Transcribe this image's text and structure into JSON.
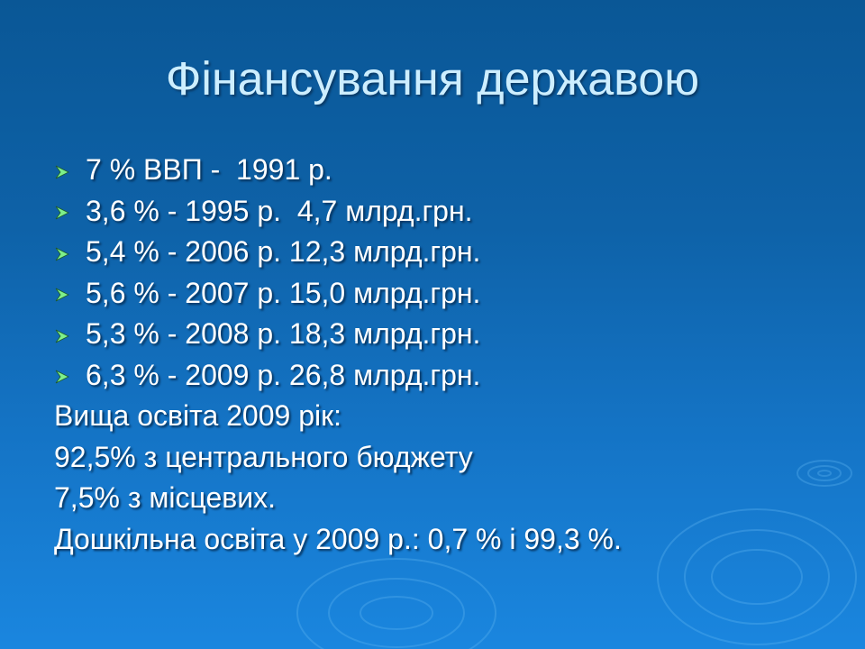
{
  "slide": {
    "title": "Фінансування державою",
    "bullets": [
      "7 % ВВП -  1991 р.",
      "3,6 % - 1995 р.  4,7 млрд.грн.",
      "5,4 % - 2006 р. 12,3 млрд.грн.",
      "5,6 % - 2007 р. 15,0 млрд.грн.",
      "5,3 % - 2008 р. 18,3 млрд.грн.",
      "6,3 % - 2009 р. 26,8 млрд.грн."
    ],
    "bullet_icon": "arrowhead-bullet-icon",
    "bullet_color": "#7ef08a",
    "paragraphs": [
      "Вища освіта 2009 рік:",
      "92,5% з центрального бюджету",
      "7,5% з місцевих.",
      "Дошкільна освіта у 2009 р.: 0,7 % і 99,3 %."
    ],
    "colors": {
      "background_top": "#0a5796",
      "background_bottom": "#1a86df",
      "title": "#cdeeff",
      "text": "#ffffff"
    }
  }
}
